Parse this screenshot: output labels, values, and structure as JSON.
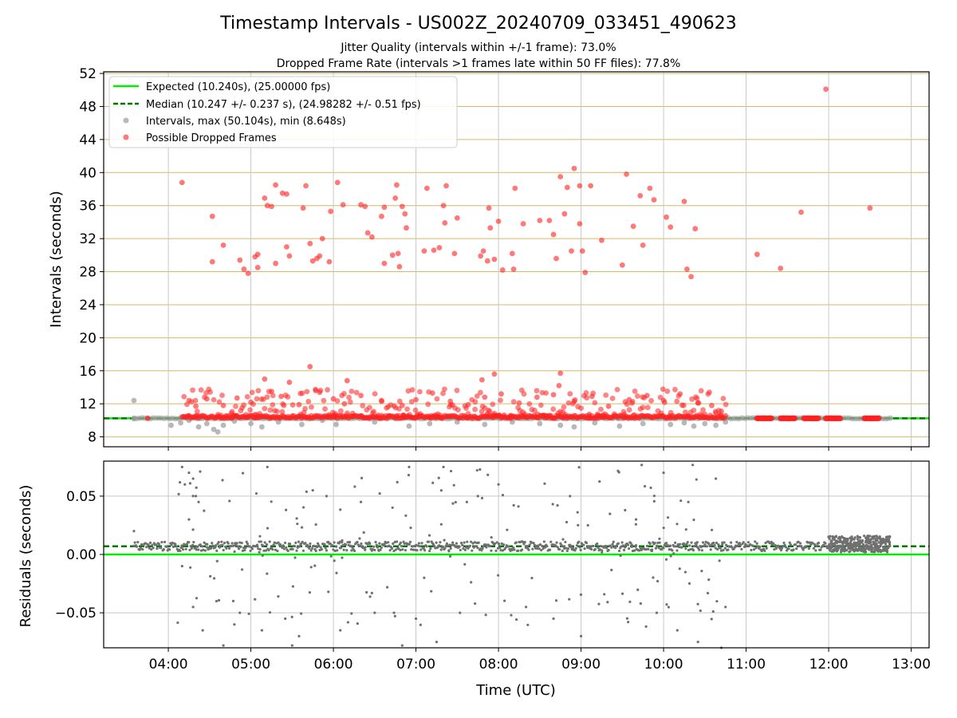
{
  "figure": {
    "title": "Timestamp Intervals - US002Z_20240709_033451_490623",
    "subtitle_1": "Jitter Quality (intervals within +/-1 frame): 73.0%",
    "subtitle_2": "Dropped Frame Rate (intervals >1 frames late within 50 FF files): 77.8%"
  },
  "colors": {
    "expected": "#00ee00",
    "median": "#007700",
    "intervals": "#9a9a9a",
    "dropped": "#ff2020",
    "residuals": "#707070",
    "h_grid": "#d4b86a",
    "v_grid": "#c8c8c8"
  },
  "chart_data": [
    {
      "type": "scatter",
      "xlabel": "",
      "ylabel": "Intervals (seconds)",
      "x_ticks": [
        "04:00",
        "05:00",
        "06:00",
        "07:00",
        "08:00",
        "09:00",
        "10:00",
        "11:00",
        "12:00",
        "13:00"
      ],
      "x_range": [
        "03:13",
        "13:13"
      ],
      "y_ticks": [
        "8",
        "12",
        "16",
        "20",
        "24",
        "28",
        "32",
        "36",
        "40",
        "44",
        "48",
        "52"
      ],
      "ylim": [
        6.8,
        52.2
      ],
      "grid": "horizontal gold lines, vertical gray lines",
      "legend_position": "top-left",
      "legend": [
        {
          "label": "Expected (10.240s), (25.00000 fps)",
          "style": "solid-line",
          "color": "#00ee00"
        },
        {
          "label": "Median (10.247 +/- 0.237 s), (24.98282 +/- 0.51 fps)",
          "style": "dashed-line",
          "color": "#007700"
        },
        {
          "label": "Intervals, max (50.104s), min (8.648s)",
          "style": "marker",
          "color": "#9a9a9a"
        },
        {
          "label": "Possible Dropped Frames",
          "style": "marker",
          "color": "#ff2020"
        }
      ],
      "expected_line": 10.24,
      "median_line": 10.247,
      "x_extent": [
        "03:35",
        "12:45"
      ],
      "series": [
        {
          "name": "Intervals, max (50.104s), min (8.648s)",
          "baseline": 10.24,
          "points": [
            [
              "03:35",
              12.4
            ],
            [
              "03:35",
              10.2
            ],
            [
              "04:02",
              9.4
            ],
            [
              "04:09",
              9.7
            ],
            [
              "04:15",
              10.0
            ],
            [
              "04:22",
              9.2
            ],
            [
              "04:28",
              9.6
            ],
            [
              "04:33",
              8.9
            ],
            [
              "04:36",
              8.6
            ],
            [
              "04:40",
              9.4
            ],
            [
              "04:48",
              9.9
            ],
            [
              "05:00",
              9.6
            ],
            [
              "05:08",
              9.2
            ],
            [
              "05:20",
              9.8
            ],
            [
              "05:37",
              9.5
            ],
            [
              "05:52",
              10.0
            ],
            [
              "06:02",
              9.5
            ],
            [
              "06:30",
              9.8
            ],
            [
              "06:55",
              9.3
            ],
            [
              "07:10",
              9.6
            ],
            [
              "07:30",
              9.8
            ],
            [
              "07:50",
              9.5
            ],
            [
              "08:10",
              9.8
            ],
            [
              "08:30",
              9.6
            ],
            [
              "08:45",
              9.4
            ],
            [
              "08:55",
              9.2
            ],
            [
              "09:10",
              9.7
            ],
            [
              "09:28",
              9.3
            ],
            [
              "09:45",
              9.6
            ],
            [
              "10:05",
              9.5
            ],
            [
              "10:15",
              9.7
            ],
            [
              "10:22",
              9.3
            ],
            [
              "10:30",
              9.6
            ],
            [
              "10:38",
              9.4
            ],
            [
              "10:45",
              9.8
            ]
          ]
        },
        {
          "name": "Possible Dropped Frames",
          "band_center": 10.24,
          "points": [
            [
              "04:10",
              38.8
            ],
            [
              "04:32",
              34.7
            ],
            [
              "04:40",
              31.2
            ],
            [
              "04:32",
              29.2
            ],
            [
              "04:52",
              29.4
            ],
            [
              "04:55",
              28.3
            ],
            [
              "04:58",
              27.8
            ],
            [
              "05:03",
              29.8
            ],
            [
              "05:05",
              30.1
            ],
            [
              "05:05",
              28.5
            ],
            [
              "05:10",
              36.9
            ],
            [
              "05:12",
              36.0
            ],
            [
              "05:15",
              35.9
            ],
            [
              "05:18",
              29.0
            ],
            [
              "05:18",
              38.5
            ],
            [
              "05:23",
              37.5
            ],
            [
              "05:26",
              31.0
            ],
            [
              "05:28",
              29.9
            ],
            [
              "05:26",
              37.4
            ],
            [
              "05:38",
              35.7
            ],
            [
              "05:40",
              38.4
            ],
            [
              "05:43",
              31.4
            ],
            [
              "05:45",
              29.3
            ],
            [
              "05:48",
              29.6
            ],
            [
              "05:50",
              29.9
            ],
            [
              "05:52",
              32.0
            ],
            [
              "05:57",
              29.2
            ],
            [
              "05:58",
              35.3
            ],
            [
              "06:03",
              38.8
            ],
            [
              "06:07",
              36.1
            ],
            [
              "06:20",
              36.1
            ],
            [
              "06:23",
              35.9
            ],
            [
              "06:25",
              32.7
            ],
            [
              "06:28",
              32.2
            ],
            [
              "06:35",
              34.7
            ],
            [
              "06:37",
              35.8
            ],
            [
              "06:37",
              29.0
            ],
            [
              "06:43",
              30.0
            ],
            [
              "06:45",
              36.9
            ],
            [
              "06:46",
              38.5
            ],
            [
              "06:47",
              30.2
            ],
            [
              "06:48",
              28.6
            ],
            [
              "06:50",
              35.9
            ],
            [
              "06:52",
              35.0
            ],
            [
              "06:53",
              33.3
            ],
            [
              "07:06",
              30.5
            ],
            [
              "07:08",
              38.1
            ],
            [
              "07:13",
              30.6
            ],
            [
              "07:17",
              30.9
            ],
            [
              "07:20",
              36.0
            ],
            [
              "07:21",
              33.9
            ],
            [
              "07:22",
              38.4
            ],
            [
              "07:28",
              30.2
            ],
            [
              "07:30",
              34.5
            ],
            [
              "07:47",
              29.9
            ],
            [
              "07:49",
              30.5
            ],
            [
              "07:52",
              29.3
            ],
            [
              "07:53",
              35.7
            ],
            [
              "07:54",
              33.3
            ],
            [
              "07:57",
              29.5
            ],
            [
              "08:00",
              34.1
            ],
            [
              "08:03",
              28.2
            ],
            [
              "08:10",
              30.2
            ],
            [
              "08:11",
              28.3
            ],
            [
              "08:12",
              38.1
            ],
            [
              "08:18",
              33.8
            ],
            [
              "08:30",
              34.2
            ],
            [
              "08:37",
              34.2
            ],
            [
              "08:40",
              32.5
            ],
            [
              "08:42",
              29.6
            ],
            [
              "08:45",
              39.5
            ],
            [
              "08:48",
              35.0
            ],
            [
              "08:50",
              38.2
            ],
            [
              "08:53",
              30.5
            ],
            [
              "08:55",
              40.5
            ],
            [
              "08:59",
              33.8
            ],
            [
              "08:59",
              38.4
            ],
            [
              "09:01",
              30.5
            ],
            [
              "09:03",
              27.9
            ],
            [
              "09:07",
              38.4
            ],
            [
              "09:15",
              31.8
            ],
            [
              "09:30",
              28.8
            ],
            [
              "09:33",
              39.8
            ],
            [
              "09:38",
              33.5
            ],
            [
              "09:43",
              37.2
            ],
            [
              "09:45",
              31.2
            ],
            [
              "09:50",
              38.1
            ],
            [
              "09:53",
              36.7
            ],
            [
              "10:02",
              34.6
            ],
            [
              "10:05",
              33.4
            ],
            [
              "10:15",
              36.5
            ],
            [
              "10:17",
              28.3
            ],
            [
              "10:20",
              27.4
            ],
            [
              "10:23",
              33.2
            ],
            [
              "11:08",
              30.1
            ],
            [
              "11:25",
              28.4
            ],
            [
              "11:40",
              35.2
            ],
            [
              "11:58",
              50.1
            ],
            [
              "12:30",
              35.7
            ],
            [
              "05:43",
              16.5
            ],
            [
              "05:10",
              15.0
            ],
            [
              "05:28",
              14.6
            ],
            [
              "06:10",
              14.8
            ],
            [
              "07:48",
              14.9
            ],
            [
              "07:57",
              15.6
            ],
            [
              "08:45",
              15.7
            ],
            [
              "08:44",
              14.2
            ],
            [
              "04:15",
              12.4
            ],
            [
              "04:20",
              11.7
            ],
            [
              "04:28",
              12.6
            ],
            [
              "04:40",
              11.8
            ],
            [
              "04:50",
              12.7
            ],
            [
              "05:00",
              12.2
            ],
            [
              "05:15",
              13.5
            ],
            [
              "05:22",
              12.9
            ],
            [
              "05:35",
              11.9
            ],
            [
              "05:50",
              13.4
            ],
            [
              "06:00",
              12.6
            ],
            [
              "06:08",
              12.0
            ],
            [
              "06:20",
              13.0
            ],
            [
              "06:35",
              12.4
            ],
            [
              "06:50",
              11.8
            ],
            [
              "07:00",
              12.5
            ],
            [
              "07:12",
              13.3
            ],
            [
              "07:25",
              12.3
            ],
            [
              "07:38",
              11.9
            ],
            [
              "07:50",
              12.8
            ],
            [
              "08:02",
              13.2
            ],
            [
              "08:15",
              12.1
            ],
            [
              "08:28",
              12.8
            ],
            [
              "08:40",
              13.1
            ],
            [
              "08:55",
              12.3
            ],
            [
              "09:08",
              12.9
            ],
            [
              "09:20",
              11.7
            ],
            [
              "09:35",
              12.5
            ],
            [
              "09:48",
              13.0
            ],
            [
              "10:00",
              12.4
            ],
            [
              "10:12",
              13.2
            ],
            [
              "10:25",
              12.1
            ],
            [
              "10:35",
              11.8
            ],
            [
              "10:42",
              11.1
            ]
          ]
        }
      ],
      "dropped_band": {
        "from": "04:10",
        "to": "10:45",
        "y_min": 10.24,
        "y_max": 13.5
      },
      "dropped_clusters_after_1100": [
        "11:08",
        "11:25",
        "11:42",
        "11:58",
        "12:26"
      ]
    },
    {
      "type": "scatter",
      "xlabel": "Time (UTC)",
      "ylabel": "Residuals (seconds)",
      "x_ticks": [
        "04:00",
        "05:00",
        "06:00",
        "07:00",
        "08:00",
        "09:00",
        "10:00",
        "11:00",
        "12:00",
        "13:00"
      ],
      "y_ticks": [
        "−0.05",
        "0.00",
        "0.05"
      ],
      "ylim": [
        -0.08,
        0.08
      ],
      "expected_line": 0.0,
      "median_line": 0.007,
      "grid": "horizontal and vertical gray lines",
      "series": [
        {
          "name": "Residuals",
          "baseline": 0.007,
          "points": [
            [
              "03:35",
              0.02
            ],
            [
              "04:10",
              0.075
            ],
            [
              "04:12",
              0.06
            ],
            [
              "04:15",
              0.07
            ],
            [
              "04:18",
              0.065
            ],
            [
              "04:20",
              0.05
            ],
            [
              "04:22",
              0.045
            ],
            [
              "04:15",
              0.03
            ],
            [
              "04:18",
              -0.045
            ],
            [
              "04:25",
              -0.065
            ],
            [
              "04:10",
              -0.01
            ],
            [
              "04:35",
              -0.04
            ],
            [
              "04:48",
              -0.06
            ],
            [
              "04:52",
              -0.05
            ],
            [
              "05:08",
              -0.065
            ],
            [
              "05:12",
              0.075
            ],
            [
              "05:25",
              -0.055
            ],
            [
              "05:35",
              -0.07
            ],
            [
              "05:45",
              0.055
            ],
            [
              "05:55",
              0.05
            ],
            [
              "06:05",
              -0.065
            ],
            [
              "06:20",
              0.045
            ],
            [
              "06:30",
              -0.05
            ],
            [
              "06:55",
              0.075
            ],
            [
              "07:00",
              -0.055
            ],
            [
              "07:20",
              0.075
            ],
            [
              "07:15",
              -0.075
            ],
            [
              "07:32",
              -0.05
            ],
            [
              "07:45",
              0.05
            ],
            [
              "08:00",
              0.06
            ],
            [
              "08:20",
              -0.045
            ],
            [
              "08:40",
              -0.055
            ],
            [
              "08:52",
              0.05
            ],
            [
              "09:00",
              -0.07
            ],
            [
              "09:05",
              0.025
            ],
            [
              "09:40",
              0.03
            ],
            [
              "09:55",
              -0.05
            ],
            [
              "10:00",
              0.07
            ],
            [
              "10:10",
              -0.065
            ],
            [
              "10:18",
              0.045
            ],
            [
              "10:25",
              -0.075
            ],
            [
              "10:38",
              0.065
            ],
            [
              "10:45",
              -0.045
            ],
            [
              "10:42",
              -0.08
            ],
            [
              "04:40",
              -0.078
            ],
            [
              "05:30",
              -0.078
            ],
            [
              "06:50",
              -0.078
            ]
          ]
        }
      ],
      "cluster_region": {
        "from": "12:00",
        "to": "12:45",
        "y_min": 0.002,
        "y_max": 0.016
      }
    }
  ]
}
